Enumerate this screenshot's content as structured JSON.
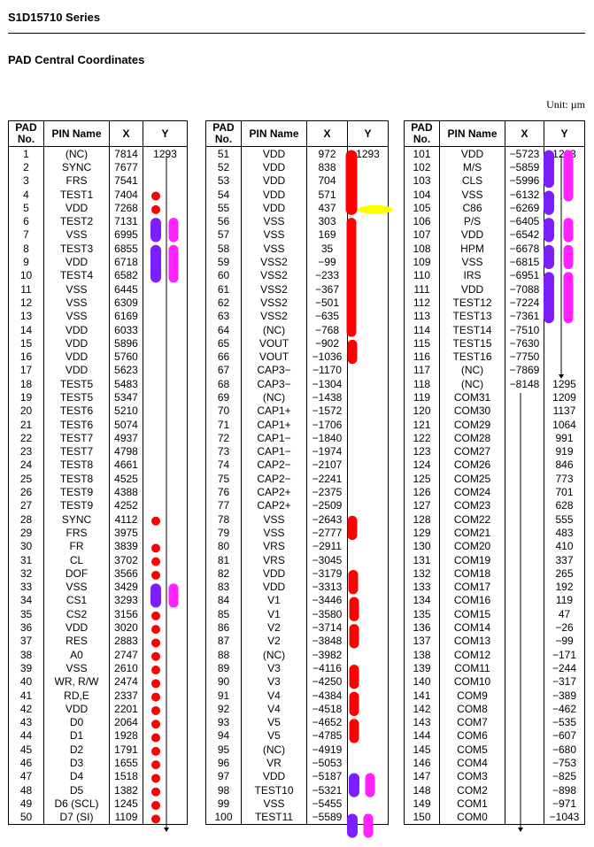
{
  "header": {
    "series": "S1D15710 Series",
    "section": "PAD Central Coordinates",
    "unit": "Unit: µm"
  },
  "columns": {
    "pad": "PAD No.",
    "pin": "PIN Name",
    "x": "X",
    "y": "Y"
  },
  "colors": {
    "red": "#ff0000",
    "purple": "#7b1fff",
    "magenta": "#ff22ff",
    "yellow": "#ffff00"
  },
  "tables": [
    {
      "rows": [
        [
          "1",
          "(NC)",
          "7814",
          "1293"
        ],
        [
          "2",
          "SYNC",
          "7677",
          ""
        ],
        [
          "3",
          "FRS",
          "7541",
          ""
        ],
        [
          "4",
          "TEST1",
          "7404",
          ""
        ],
        [
          "5",
          "VDD",
          "7268",
          ""
        ],
        [
          "6",
          "TEST2",
          "7131",
          ""
        ],
        [
          "7",
          "VSS",
          "6995",
          ""
        ],
        [
          "8",
          "TEST3",
          "6855",
          ""
        ],
        [
          "9",
          "VDD",
          "6718",
          ""
        ],
        [
          "10",
          "TEST4",
          "6582",
          ""
        ],
        [
          "11",
          "VSS",
          "6445",
          ""
        ],
        [
          "12",
          "VSS",
          "6309",
          ""
        ],
        [
          "13",
          "VSS",
          "6169",
          ""
        ],
        [
          "14",
          "VDD",
          "6033",
          ""
        ],
        [
          "15",
          "VDD",
          "5896",
          ""
        ],
        [
          "16",
          "VDD",
          "5760",
          ""
        ],
        [
          "17",
          "VDD",
          "5623",
          ""
        ],
        [
          "18",
          "TEST5",
          "5483",
          ""
        ],
        [
          "19",
          "TEST5",
          "5347",
          ""
        ],
        [
          "20",
          "TEST6",
          "5210",
          ""
        ],
        [
          "21",
          "TEST6",
          "5074",
          ""
        ],
        [
          "22",
          "TEST7",
          "4937",
          ""
        ],
        [
          "23",
          "TEST7",
          "4798",
          ""
        ],
        [
          "24",
          "TEST8",
          "4661",
          ""
        ],
        [
          "25",
          "TEST8",
          "4525",
          ""
        ],
        [
          "26",
          "TEST9",
          "4388",
          ""
        ],
        [
          "27",
          "TEST9",
          "4252",
          ""
        ],
        [
          "28",
          "SYNC",
          "4112",
          ""
        ],
        [
          "29",
          "FRS",
          "3975",
          ""
        ],
        [
          "30",
          "FR",
          "3839",
          ""
        ],
        [
          "31",
          "CL",
          "3702",
          ""
        ],
        [
          "32",
          "DOF",
          "3566",
          ""
        ],
        [
          "33",
          "VSS",
          "3429",
          ""
        ],
        [
          "34",
          "CS1",
          "3293",
          ""
        ],
        [
          "35",
          "CS2",
          "3156",
          ""
        ],
        [
          "36",
          "VDD",
          "3020",
          ""
        ],
        [
          "37",
          "RES",
          "2883",
          ""
        ],
        [
          "38",
          "A0",
          "2747",
          ""
        ],
        [
          "39",
          "VSS",
          "2610",
          ""
        ],
        [
          "40",
          "WR, R/W",
          "2474",
          ""
        ],
        [
          "41",
          "RD,E",
          "2337",
          ""
        ],
        [
          "42",
          "VDD",
          "2201",
          ""
        ],
        [
          "43",
          "D0",
          "2064",
          ""
        ],
        [
          "44",
          "D1",
          "1928",
          ""
        ],
        [
          "45",
          "D2",
          "1791",
          ""
        ],
        [
          "46",
          "D3",
          "1655",
          ""
        ],
        [
          "47",
          "D4",
          "1518",
          ""
        ],
        [
          "48",
          "D5",
          "1382",
          ""
        ],
        [
          "49",
          "D6 (SCL)",
          "1245",
          ""
        ],
        [
          "50",
          "D7 (SI)",
          "1109",
          ""
        ]
      ]
    },
    {
      "rows": [
        [
          "51",
          "VDD",
          "972",
          "1293"
        ],
        [
          "52",
          "VDD",
          "838",
          ""
        ],
        [
          "53",
          "VDD",
          "704",
          ""
        ],
        [
          "54",
          "VDD",
          "571",
          ""
        ],
        [
          "55",
          "VDD",
          "437",
          ""
        ],
        [
          "56",
          "VSS",
          "303",
          ""
        ],
        [
          "57",
          "VSS",
          "169",
          ""
        ],
        [
          "58",
          "VSS",
          "35",
          ""
        ],
        [
          "59",
          "VSS2",
          "−99",
          ""
        ],
        [
          "60",
          "VSS2",
          "−233",
          ""
        ],
        [
          "61",
          "VSS2",
          "−367",
          ""
        ],
        [
          "62",
          "VSS2",
          "−501",
          ""
        ],
        [
          "63",
          "VSS2",
          "−635",
          ""
        ],
        [
          "64",
          "(NC)",
          "−768",
          ""
        ],
        [
          "65",
          "VOUT",
          "−902",
          ""
        ],
        [
          "66",
          "VOUT",
          "−1036",
          ""
        ],
        [
          "67",
          "CAP3−",
          "−1170",
          ""
        ],
        [
          "68",
          "CAP3−",
          "−1304",
          ""
        ],
        [
          "69",
          "(NC)",
          "−1438",
          ""
        ],
        [
          "70",
          "CAP1+",
          "−1572",
          ""
        ],
        [
          "71",
          "CAP1+",
          "−1706",
          ""
        ],
        [
          "72",
          "CAP1−",
          "−1840",
          ""
        ],
        [
          "73",
          "CAP1−",
          "−1974",
          ""
        ],
        [
          "74",
          "CAP2−",
          "−2107",
          ""
        ],
        [
          "75",
          "CAP2−",
          "−2241",
          ""
        ],
        [
          "76",
          "CAP2+",
          "−2375",
          ""
        ],
        [
          "77",
          "CAP2+",
          "−2509",
          ""
        ],
        [
          "78",
          "VSS",
          "−2643",
          ""
        ],
        [
          "79",
          "VSS",
          "−2777",
          ""
        ],
        [
          "80",
          "VRS",
          "−2911",
          ""
        ],
        [
          "81",
          "VRS",
          "−3045",
          ""
        ],
        [
          "82",
          "VDD",
          "−3179",
          ""
        ],
        [
          "83",
          "VDD",
          "−3313",
          ""
        ],
        [
          "84",
          "V1",
          "−3446",
          ""
        ],
        [
          "85",
          "V1",
          "−3580",
          ""
        ],
        [
          "86",
          "V2",
          "−3714",
          ""
        ],
        [
          "87",
          "V2",
          "−3848",
          ""
        ],
        [
          "88",
          "(NC)",
          "−3982",
          ""
        ],
        [
          "89",
          "V3",
          "−4116",
          ""
        ],
        [
          "90",
          "V3",
          "−4250",
          ""
        ],
        [
          "91",
          "V4",
          "−4384",
          ""
        ],
        [
          "92",
          "V4",
          "−4518",
          ""
        ],
        [
          "93",
          "V5",
          "−4652",
          ""
        ],
        [
          "94",
          "V5",
          "−4785",
          ""
        ],
        [
          "95",
          "(NC)",
          "−4919",
          ""
        ],
        [
          "96",
          "VR",
          "−5053",
          ""
        ],
        [
          "97",
          "VDD",
          "−5187",
          ""
        ],
        [
          "98",
          "TEST10",
          "−5321",
          ""
        ],
        [
          "99",
          "VSS",
          "−5455",
          ""
        ],
        [
          "100",
          "TEST11",
          "−5589",
          ""
        ]
      ]
    },
    {
      "rows": [
        [
          "101",
          "VDD",
          "−5723",
          "1293"
        ],
        [
          "102",
          "M/S",
          "−5859",
          ""
        ],
        [
          "103",
          "CLS",
          "−5996",
          ""
        ],
        [
          "104",
          "VSS",
          "−6132",
          ""
        ],
        [
          "105",
          "C86",
          "−6269",
          ""
        ],
        [
          "106",
          "P/S",
          "−6405",
          ""
        ],
        [
          "107",
          "VDD",
          "−6542",
          ""
        ],
        [
          "108",
          "HPM",
          "−6678",
          ""
        ],
        [
          "109",
          "VSS",
          "−6815",
          ""
        ],
        [
          "110",
          "IRS",
          "−6951",
          ""
        ],
        [
          "111",
          "VDD",
          "−7088",
          ""
        ],
        [
          "112",
          "TEST12",
          "−7224",
          ""
        ],
        [
          "113",
          "TEST13",
          "−7361",
          ""
        ],
        [
          "114",
          "TEST14",
          "−7510",
          ""
        ],
        [
          "115",
          "TEST15",
          "−7630",
          ""
        ],
        [
          "116",
          "TEST16",
          "−7750",
          ""
        ],
        [
          "117",
          "(NC)",
          "−7869",
          ""
        ],
        [
          "118",
          "(NC)",
          "−8148",
          "1295"
        ],
        [
          "119",
          "COM31",
          "",
          "1209"
        ],
        [
          "120",
          "COM30",
          "",
          "1137"
        ],
        [
          "121",
          "COM29",
          "",
          "1064"
        ],
        [
          "122",
          "COM28",
          "",
          "991"
        ],
        [
          "123",
          "COM27",
          "",
          "919"
        ],
        [
          "124",
          "COM26",
          "",
          "846"
        ],
        [
          "125",
          "COM25",
          "",
          "773"
        ],
        [
          "126",
          "COM24",
          "",
          "701"
        ],
        [
          "127",
          "COM23",
          "",
          "628"
        ],
        [
          "128",
          "COM22",
          "",
          "555"
        ],
        [
          "129",
          "COM21",
          "",
          "483"
        ],
        [
          "130",
          "COM20",
          "",
          "410"
        ],
        [
          "131",
          "COM19",
          "",
          "337"
        ],
        [
          "132",
          "COM18",
          "",
          "265"
        ],
        [
          "133",
          "COM17",
          "",
          "192"
        ],
        [
          "134",
          "COM16",
          "",
          "119"
        ],
        [
          "135",
          "COM15",
          "",
          "47"
        ],
        [
          "136",
          "COM14",
          "",
          "−26"
        ],
        [
          "137",
          "COM13",
          "",
          "−99"
        ],
        [
          "138",
          "COM12",
          "",
          "−171"
        ],
        [
          "139",
          "COM11",
          "",
          "−244"
        ],
        [
          "140",
          "COM10",
          "",
          "−317"
        ],
        [
          "141",
          "COM9",
          "",
          "−389"
        ],
        [
          "142",
          "COM8",
          "",
          "−462"
        ],
        [
          "143",
          "COM7",
          "",
          "−535"
        ],
        [
          "144",
          "COM6",
          "",
          "−607"
        ],
        [
          "145",
          "COM5",
          "",
          "−680"
        ],
        [
          "146",
          "COM4",
          "",
          "−753"
        ],
        [
          "147",
          "COM3",
          "",
          "−825"
        ],
        [
          "148",
          "COM2",
          "",
          "−898"
        ],
        [
          "149",
          "COM1",
          "",
          "−971"
        ],
        [
          "150",
          "COM0",
          "",
          "−1043"
        ]
      ]
    }
  ]
}
